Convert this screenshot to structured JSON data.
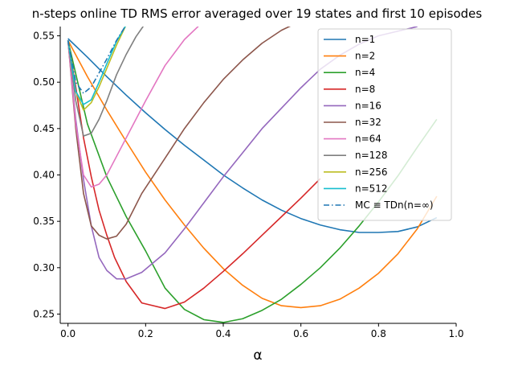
{
  "chart_data": {
    "type": "line",
    "title": "n-steps online TD RMS error averaged over 19 states and first 10 episodes",
    "xlabel": "α",
    "ylabel": "",
    "xlim": [
      -0.02,
      1.0
    ],
    "ylim": [
      0.24,
      0.56
    ],
    "xticks": [
      "0.0",
      "0.2",
      "0.4",
      "0.6",
      "0.8",
      "1.0"
    ],
    "yticks": [
      "0.25",
      "0.30",
      "0.35",
      "0.40",
      "0.45",
      "0.50",
      "0.55"
    ],
    "grid": false,
    "legend_position": "top-right",
    "series": [
      {
        "name": "n=1",
        "color": "#1f77b4",
        "dash": "solid",
        "x": [
          0,
          0.05,
          0.1,
          0.15,
          0.2,
          0.25,
          0.3,
          0.35,
          0.4,
          0.45,
          0.5,
          0.55,
          0.6,
          0.65,
          0.7,
          0.75,
          0.8,
          0.85,
          0.9,
          0.95
        ],
        "y": [
          0.547,
          0.527,
          0.506,
          0.486,
          0.467,
          0.449,
          0.432,
          0.416,
          0.4,
          0.386,
          0.373,
          0.362,
          0.353,
          0.346,
          0.341,
          0.338,
          0.338,
          0.339,
          0.344,
          0.354
        ]
      },
      {
        "name": "n=2",
        "color": "#ff7f0e",
        "dash": "solid",
        "x": [
          0,
          0.05,
          0.1,
          0.15,
          0.2,
          0.25,
          0.3,
          0.35,
          0.4,
          0.45,
          0.5,
          0.55,
          0.6,
          0.65,
          0.7,
          0.75,
          0.8,
          0.85,
          0.9,
          0.95
        ],
        "y": [
          0.545,
          0.506,
          0.47,
          0.436,
          0.403,
          0.373,
          0.346,
          0.321,
          0.299,
          0.281,
          0.267,
          0.259,
          0.257,
          0.259,
          0.266,
          0.278,
          0.294,
          0.315,
          0.342,
          0.377
        ]
      },
      {
        "name": "n=4",
        "color": "#2ca02c",
        "dash": "solid",
        "x": [
          0,
          0.05,
          0.1,
          0.15,
          0.2,
          0.25,
          0.3,
          0.35,
          0.4,
          0.45,
          0.5,
          0.55,
          0.6,
          0.65,
          0.7,
          0.75,
          0.8,
          0.85,
          0.9,
          0.95
        ],
        "y": [
          0.545,
          0.455,
          0.398,
          0.355,
          0.318,
          0.278,
          0.255,
          0.244,
          0.241,
          0.245,
          0.254,
          0.266,
          0.282,
          0.3,
          0.321,
          0.345,
          0.371,
          0.399,
          0.43,
          0.46
        ]
      },
      {
        "name": "n=8",
        "color": "#d62728",
        "dash": "solid",
        "x": [
          0,
          0.02,
          0.04,
          0.06,
          0.08,
          0.1,
          0.12,
          0.15,
          0.19,
          0.25,
          0.3,
          0.35,
          0.4,
          0.45,
          0.5,
          0.55,
          0.6,
          0.65
        ],
        "y": [
          0.545,
          0.495,
          0.44,
          0.398,
          0.362,
          0.335,
          0.311,
          0.285,
          0.262,
          0.256,
          0.263,
          0.278,
          0.296,
          0.315,
          0.335,
          0.355,
          0.375,
          0.396
        ]
      },
      {
        "name": "n=16",
        "color": "#9467bd",
        "dash": "solid",
        "x": [
          0,
          0.02,
          0.04,
          0.06,
          0.08,
          0.1,
          0.125,
          0.15,
          0.19,
          0.25,
          0.3,
          0.35,
          0.4,
          0.45,
          0.5,
          0.55,
          0.6,
          0.65,
          0.7,
          0.75,
          0.8,
          0.85,
          0.9
        ],
        "y": [
          0.545,
          0.46,
          0.395,
          0.345,
          0.311,
          0.297,
          0.288,
          0.288,
          0.295,
          0.316,
          0.342,
          0.37,
          0.398,
          0.424,
          0.45,
          0.472,
          0.494,
          0.514,
          0.529,
          0.541,
          0.55,
          0.555,
          0.56
        ]
      },
      {
        "name": "n=32",
        "color": "#8c564b",
        "dash": "solid",
        "x": [
          0,
          0.02,
          0.04,
          0.06,
          0.08,
          0.1,
          0.125,
          0.15,
          0.19,
          0.25,
          0.3,
          0.35,
          0.4,
          0.45,
          0.5,
          0.55,
          0.6
        ],
        "y": [
          0.545,
          0.45,
          0.38,
          0.345,
          0.335,
          0.331,
          0.334,
          0.347,
          0.38,
          0.418,
          0.45,
          0.478,
          0.503,
          0.524,
          0.542,
          0.556,
          0.566
        ]
      },
      {
        "name": "n=64",
        "color": "#e377c2",
        "dash": "solid",
        "x": [
          0,
          0.02,
          0.04,
          0.06,
          0.08,
          0.1,
          0.125,
          0.15,
          0.2,
          0.25,
          0.3,
          0.35
        ],
        "y": [
          0.545,
          0.455,
          0.4,
          0.387,
          0.39,
          0.4,
          0.42,
          0.44,
          0.48,
          0.518,
          0.546,
          0.566
        ]
      },
      {
        "name": "n=128",
        "color": "#7f7f7f",
        "dash": "solid",
        "x": [
          0,
          0.02,
          0.04,
          0.06,
          0.08,
          0.1,
          0.125,
          0.15,
          0.175,
          0.2
        ],
        "y": [
          0.545,
          0.48,
          0.442,
          0.445,
          0.46,
          0.48,
          0.508,
          0.53,
          0.549,
          0.564
        ]
      },
      {
        "name": "n=256",
        "color": "#bcbd22",
        "dash": "solid",
        "x": [
          0,
          0.02,
          0.04,
          0.06,
          0.08,
          0.1,
          0.125,
          0.15
        ],
        "y": [
          0.545,
          0.49,
          0.47,
          0.478,
          0.495,
          0.515,
          0.54,
          0.562
        ]
      },
      {
        "name": "n=512",
        "color": "#17becf",
        "dash": "solid",
        "x": [
          0,
          0.02,
          0.04,
          0.06,
          0.08,
          0.1,
          0.125,
          0.15
        ],
        "y": [
          0.545,
          0.49,
          0.476,
          0.481,
          0.5,
          0.52,
          0.544,
          0.562
        ]
      },
      {
        "name": "MC ≡ TDn(n=∞)",
        "color": "#1f77b4",
        "dash": "dashdot",
        "x": [
          0,
          0.02,
          0.04,
          0.06,
          0.08,
          0.1,
          0.125,
          0.15
        ],
        "y": [
          0.545,
          0.5,
          0.488,
          0.495,
          0.51,
          0.525,
          0.545,
          0.562
        ]
      }
    ]
  }
}
